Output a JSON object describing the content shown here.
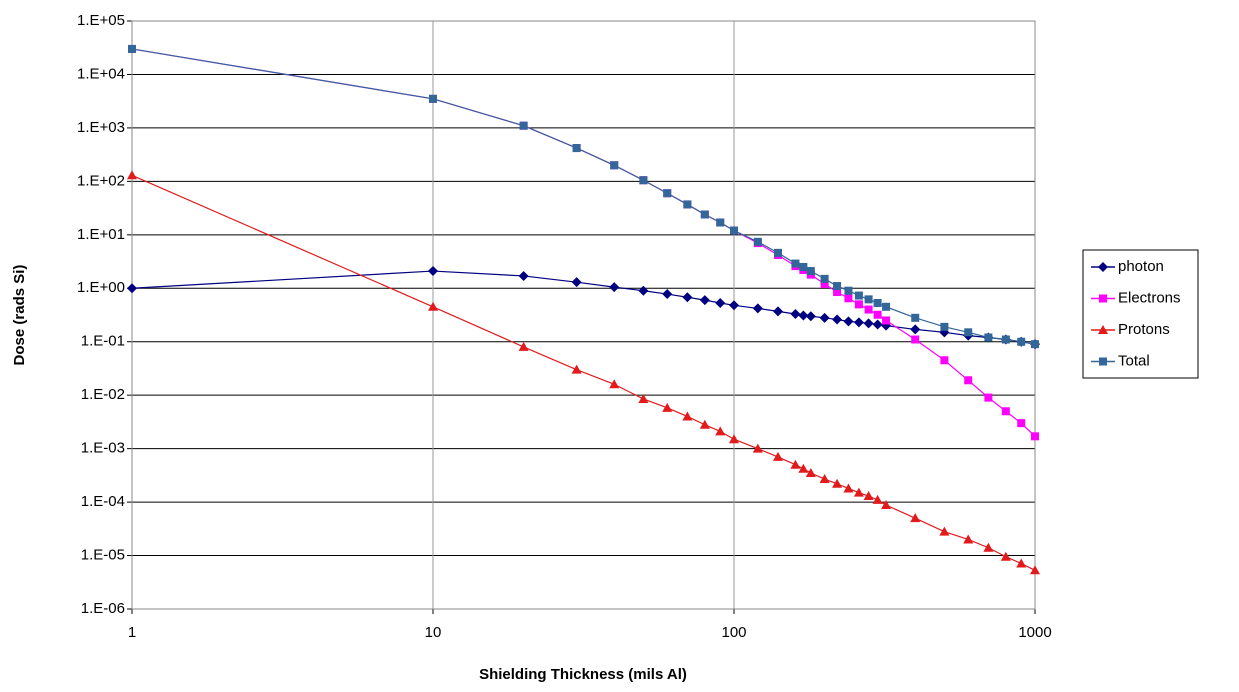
{
  "chart_data": {
    "type": "line",
    "x_label": "Shielding Thickness (mils Al)",
    "y_label": "Dose (rads Si)",
    "xscale": "log",
    "yscale": "log",
    "grid": true,
    "legend": "right",
    "xlim": [
      1,
      1000
    ],
    "xticks": [
      1,
      10,
      100,
      1000
    ],
    "ylim": [
      1e-06,
      100000
    ],
    "yticks": [
      {
        "value": 1e-06,
        "label": "1.E-06"
      },
      {
        "value": 1e-05,
        "label": "1.E-05"
      },
      {
        "value": 0.0001,
        "label": "1.E-04"
      },
      {
        "value": 0.001,
        "label": "1.E-03"
      },
      {
        "value": 0.01,
        "label": "1.E-02"
      },
      {
        "value": 0.1,
        "label": "1.E-01"
      },
      {
        "value": 1,
        "label": "1.E+00"
      },
      {
        "value": 10,
        "label": "1.E+01"
      },
      {
        "value": 100,
        "label": "1.E+02"
      },
      {
        "value": 1000,
        "label": "1.E+03"
      },
      {
        "value": 10000,
        "label": "1.E+04"
      },
      {
        "value": 100000,
        "label": "1.E+05"
      }
    ],
    "x": [
      1,
      10,
      20,
      30,
      40,
      50,
      60,
      70,
      80,
      90,
      100,
      120,
      140,
      160,
      170,
      180,
      200,
      220,
      240,
      260,
      280,
      300,
      320,
      400,
      500,
      600,
      700,
      800,
      900,
      1000
    ],
    "series": [
      {
        "name": "photon",
        "color": "#000080",
        "marker": "diamond",
        "values": [
          1.0,
          2.1,
          1.7,
          1.3,
          1.05,
          0.9,
          0.78,
          0.68,
          0.6,
          0.53,
          0.48,
          0.42,
          0.37,
          0.33,
          0.31,
          0.3,
          0.28,
          0.26,
          0.24,
          0.23,
          0.22,
          0.21,
          0.2,
          0.17,
          0.15,
          0.13,
          0.12,
          0.11,
          0.1,
          0.09
        ]
      },
      {
        "name": "Electrons",
        "color": "#ff00ff",
        "marker": "square",
        "values": [
          30000,
          3500,
          1100,
          420,
          200,
          105,
          60,
          37,
          24,
          17,
          12,
          7,
          4.2,
          2.6,
          2.2,
          1.8,
          1.2,
          0.85,
          0.65,
          0.5,
          0.4,
          0.32,
          0.25,
          0.11,
          0.045,
          0.019,
          0.009,
          0.005,
          0.003,
          0.0017
        ]
      },
      {
        "name": "Protons",
        "color": "#e31a1c",
        "marker": "triangle",
        "values": [
          130,
          0.45,
          0.08,
          0.03,
          0.016,
          0.0085,
          0.0058,
          0.004,
          0.0028,
          0.0021,
          0.0015,
          0.001,
          0.0007,
          0.0005,
          0.00042,
          0.00035,
          0.00027,
          0.00022,
          0.00018,
          0.00015,
          0.00013,
          0.00011,
          8.8e-05,
          5e-05,
          2.8e-05,
          2e-05,
          1.4e-05,
          9.5e-06,
          7.1e-06,
          5.3e-06
        ]
      },
      {
        "name": "Total",
        "color": "#336699",
        "marker": "square",
        "values": [
          30000,
          3500,
          1100,
          420,
          200,
          105,
          60,
          37,
          24,
          17,
          12,
          7.4,
          4.6,
          2.9,
          2.5,
          2.1,
          1.5,
          1.1,
          0.9,
          0.73,
          0.62,
          0.53,
          0.45,
          0.28,
          0.19,
          0.15,
          0.12,
          0.11,
          0.1,
          0.09
        ]
      }
    ]
  }
}
